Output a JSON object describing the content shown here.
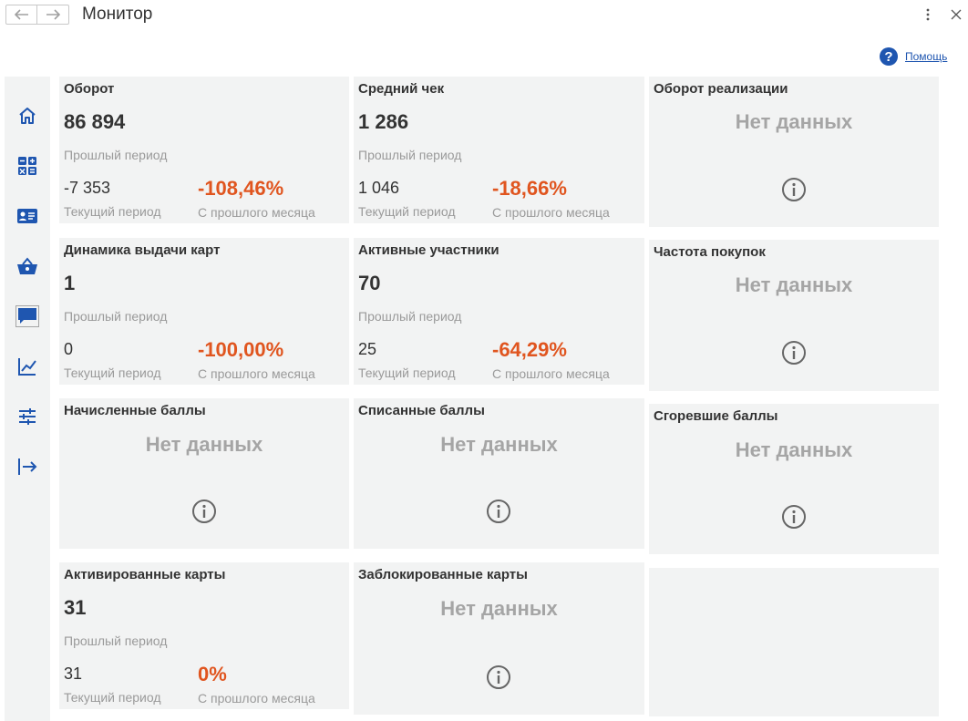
{
  "window": {
    "title": "Монитор"
  },
  "header": {
    "help_label": "Помощь"
  },
  "sidebar": {
    "items": [
      {
        "name": "home-icon"
      },
      {
        "name": "dashboard-icon"
      },
      {
        "name": "card-icon"
      },
      {
        "name": "basket-icon"
      },
      {
        "name": "chat-icon"
      },
      {
        "name": "chart-icon"
      },
      {
        "name": "settings-icon"
      },
      {
        "name": "exit-icon"
      }
    ]
  },
  "labels": {
    "previous_period": "Прошлый период",
    "current_period": "Текущий период",
    "from_last_month": "С прошлого месяца",
    "no_data": "Нет данных"
  },
  "cards": {
    "turnover": {
      "title": "Оборот",
      "value": "86 894",
      "current": "-7 353",
      "change": "-108,46%"
    },
    "average_check": {
      "title": "Средний чек",
      "value": "1 286",
      "current": "1 046",
      "change": "-18,66%"
    },
    "sales_turnover": {
      "title": "Оборот реализации"
    },
    "card_issue_dynamics": {
      "title": "Динамика выдачи карт",
      "value": "1",
      "current": "0",
      "change": "-100,00%"
    },
    "active_participants": {
      "title": "Активные участники",
      "value": "70",
      "current": "25",
      "change": "-64,29%"
    },
    "purchase_frequency": {
      "title": "Частота покупок"
    },
    "accrued_points": {
      "title": "Начисленные баллы"
    },
    "written_off_points": {
      "title": "Списанные баллы"
    },
    "expired_points": {
      "title": "Сгоревшие баллы"
    },
    "activated_cards": {
      "title": "Активированные карты",
      "value": "31",
      "current": "31",
      "change": "0%"
    },
    "blocked_cards": {
      "title": "Заблокированные карты"
    }
  },
  "colors": {
    "accent": "#1f56b0",
    "negative": "#e0551f",
    "card_bg": "#f2f3f3",
    "muted": "#9a9a9a"
  }
}
